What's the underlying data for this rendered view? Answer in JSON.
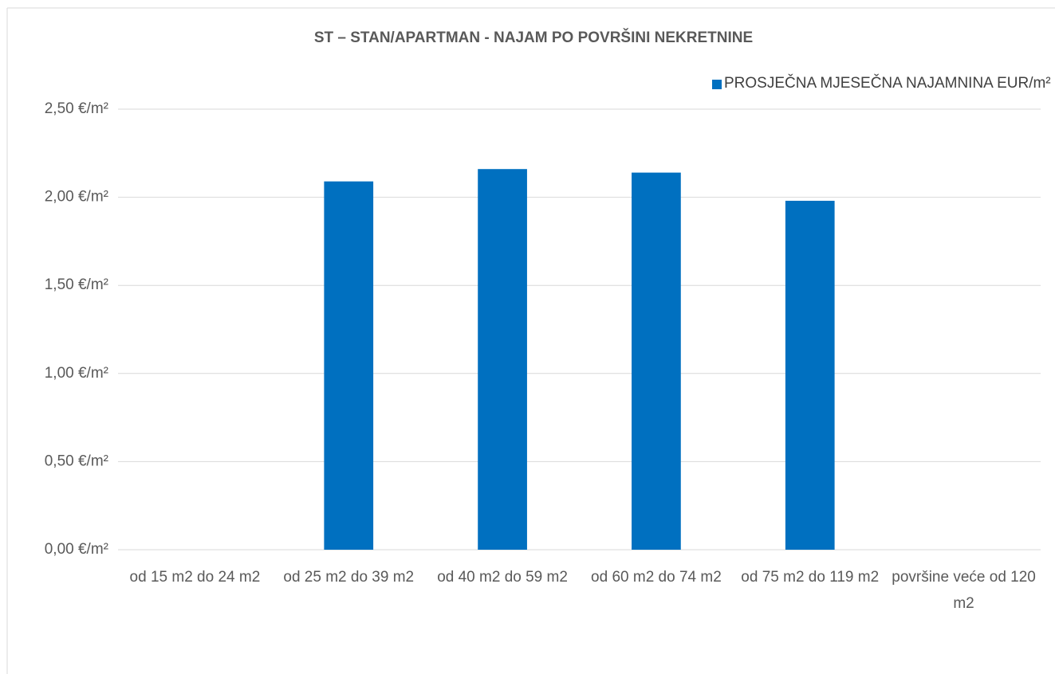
{
  "chart_data": {
    "type": "bar",
    "title": "ST – STAN/APARTMAN - NAJAM PO POVRŠINI NEKRETNINE",
    "categories": [
      "od 15 m2 do 24 m2",
      "od 25 m2 do 39 m2",
      "od 40 m2 do 59 m2",
      "od 60 m2 do 74 m2",
      "od 75 m2 do 119 m2",
      "površine veće od 120 m2"
    ],
    "series": [
      {
        "name": "PROSJEČNA MJESEČNA NAJAMNINA EUR/m²",
        "color": "#0070c0",
        "values": [
          null,
          2.09,
          2.16,
          2.14,
          1.98,
          null
        ]
      }
    ],
    "ylim": [
      0,
      2.5
    ],
    "yticks": [
      {
        "value": 0,
        "label": "0,00 €/m²"
      },
      {
        "value": 0.5,
        "label": "0,50 €/m²"
      },
      {
        "value": 1,
        "label": "1,00 €/m²"
      },
      {
        "value": 1.5,
        "label": "1,50 €/m²"
      },
      {
        "value": 2,
        "label": "2,00 €/m²"
      },
      {
        "value": 2.5,
        "label": "2,50 €/m²"
      }
    ],
    "grid": true,
    "legend": "top-right"
  }
}
